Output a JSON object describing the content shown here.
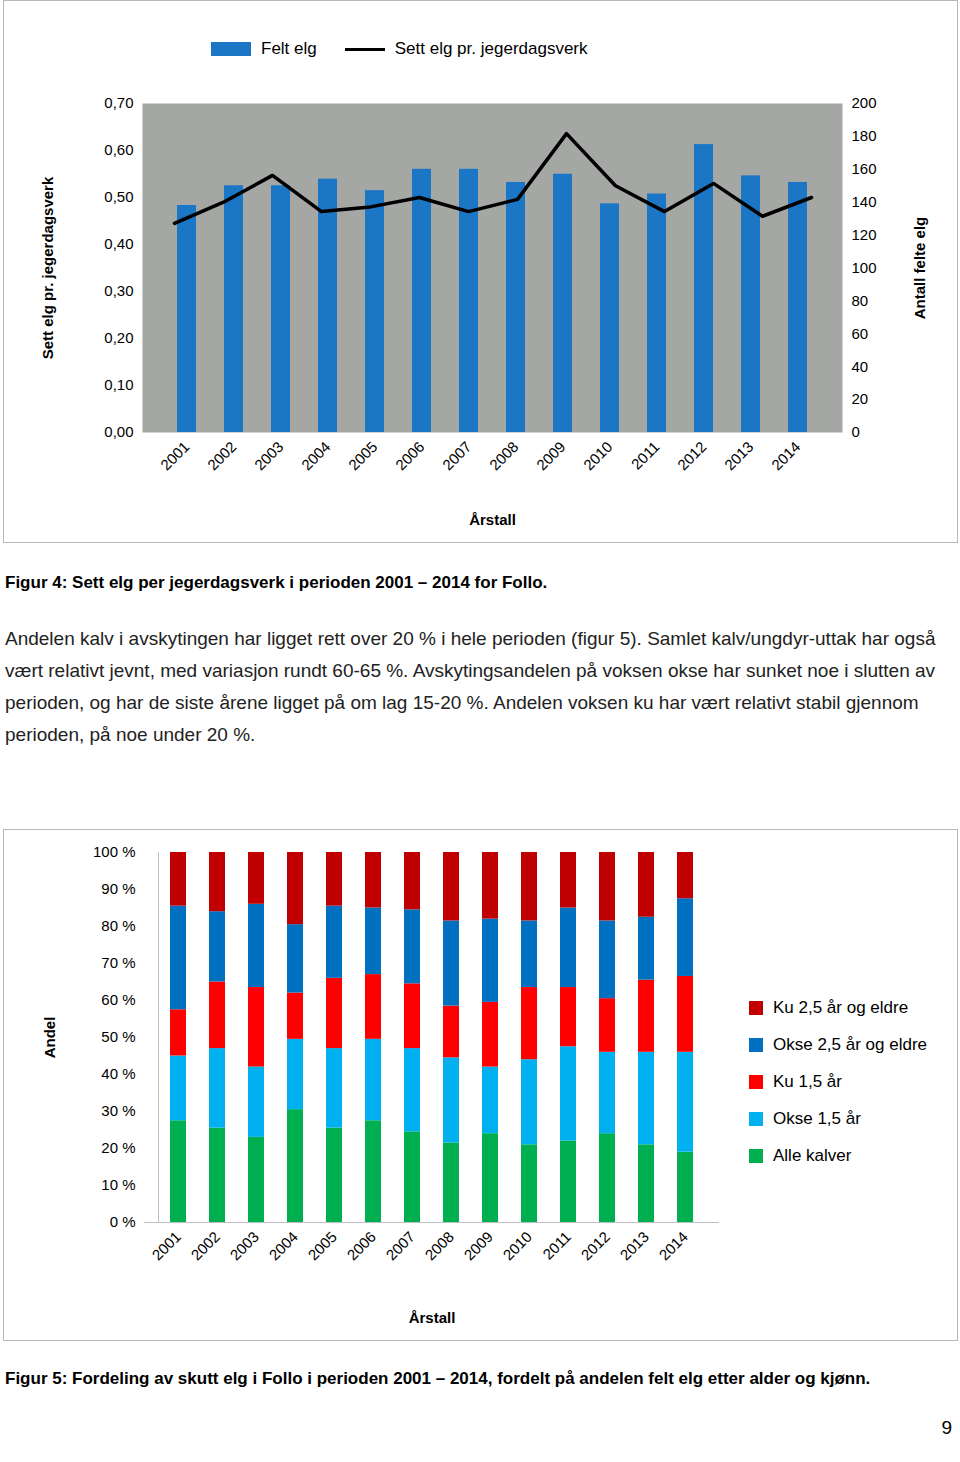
{
  "chart_data": [
    {
      "type": "bar",
      "x_label": "Årstall",
      "y_label": "Sett elg pr. jegerdagsverk",
      "y2_label": "Antall felte elg",
      "categories": [
        "2001",
        "2002",
        "2003",
        "2004",
        "2005",
        "2006",
        "2007",
        "2008",
        "2009",
        "2010",
        "2011",
        "2012",
        "2013",
        "2014"
      ],
      "series": [
        {
          "name": "Felt elg",
          "type": "bar",
          "axis": "y2",
          "color": "#1b76c6",
          "values": [
            138,
            150,
            150,
            154,
            147,
            160,
            160,
            152,
            157,
            139,
            145,
            175,
            156,
            152
          ]
        },
        {
          "name": "Sett elg pr. jegerdagsverk",
          "type": "line",
          "color": "#000000",
          "values": [
            0.445,
            0.49,
            0.547,
            0.47,
            0.48,
            0.5,
            0.47,
            0.496,
            0.636,
            0.525,
            0.47,
            0.53,
            0.46,
            0.5
          ]
        }
      ],
      "ylim": [
        0,
        0.7
      ],
      "yticks": [
        {
          "value": 0,
          "label": "0,00"
        },
        {
          "value": 0.1,
          "label": "0,10"
        },
        {
          "value": 0.2,
          "label": "0,20"
        },
        {
          "value": 0.3,
          "label": "0,30"
        },
        {
          "value": 0.4,
          "label": "0,40"
        },
        {
          "value": 0.5,
          "label": "0,50"
        },
        {
          "value": 0.6,
          "label": "0,60"
        },
        {
          "value": 0.7,
          "label": "0,70"
        }
      ],
      "y2lim": [
        0,
        200
      ],
      "y2ticks": [
        0,
        20,
        40,
        60,
        80,
        100,
        120,
        140,
        160,
        180,
        200
      ],
      "grid": false,
      "legend": "top"
    },
    {
      "type": "bar",
      "stacked": true,
      "x_label": "Årstall",
      "y_label": "Andel",
      "categories": [
        "2001",
        "2002",
        "2003",
        "2004",
        "2005",
        "2006",
        "2007",
        "2008",
        "2009",
        "2010",
        "2011",
        "2012",
        "2013",
        "2014"
      ],
      "series": [
        {
          "name": "Alle kalver",
          "color": "#00b050",
          "values": [
            27.5,
            25.5,
            23,
            30.5,
            25.5,
            27.5,
            24.5,
            21.5,
            24,
            21,
            22,
            24,
            21,
            19
          ]
        },
        {
          "name": "Okse 1,5 år",
          "color": "#00b0f0",
          "values": [
            17.5,
            21.5,
            19,
            19,
            21.5,
            22,
            22.5,
            23,
            18,
            23,
            25.5,
            22,
            25,
            27
          ]
        },
        {
          "name": "Ku 1,5 år",
          "color": "#ff0000",
          "values": [
            12.5,
            18,
            21.5,
            12.5,
            19,
            17.5,
            17.5,
            14,
            17.5,
            19.5,
            16,
            14.5,
            19.5,
            20.5
          ]
        },
        {
          "name": "Okse 2,5 år og eldre",
          "color": "#0070c0",
          "values": [
            28,
            19,
            22.5,
            18.5,
            19.5,
            18,
            20,
            23,
            22.5,
            18,
            21.5,
            21,
            17,
            21
          ]
        },
        {
          "name": "Ku 2,5 år og eldre",
          "color": "#c00000",
          "values": [
            14.5,
            16,
            14,
            19.5,
            14.5,
            15,
            15.5,
            18.5,
            18,
            18.5,
            15,
            18.5,
            17.5,
            12.5
          ]
        }
      ],
      "ylim": [
        0,
        100
      ],
      "yticks": [
        {
          "value": 0,
          "label": "0 %"
        },
        {
          "value": 10,
          "label": "10 %"
        },
        {
          "value": 20,
          "label": "20 %"
        },
        {
          "value": 30,
          "label": "30 %"
        },
        {
          "value": 40,
          "label": "40 %"
        },
        {
          "value": 50,
          "label": "50 %"
        },
        {
          "value": 60,
          "label": "60 %"
        },
        {
          "value": 70,
          "label": "70 %"
        },
        {
          "value": 80,
          "label": "80 %"
        },
        {
          "value": 90,
          "label": "90 %"
        },
        {
          "value": 100,
          "label": "100 %"
        }
      ],
      "grid": false,
      "legend": "right"
    }
  ],
  "captions": [
    "Figur 4: Sett elg per jegerdagsverk i perioden 2001 – 2014 for Follo.",
    "Figur 5: Fordeling av skutt elg i Follo i perioden 2001 – 2014, fordelt på andelen felt elg etter alder og kjønn."
  ],
  "paragraph": "Andelen kalv i avskytingen har ligget rett over 20 % i hele perioden (figur 5). Samlet kalv/ungdyr-uttak har også vært relativt jevnt, med variasjon rundt 60-65 %. Avskytingsandelen på voksen okse har sunket noe i slutten av perioden, og har de siste årene ligget på om lag 15-20 %. Andelen voksen ku har vært relativt stabil gjennom perioden, på noe under 20 %.",
  "page_number": 9
}
